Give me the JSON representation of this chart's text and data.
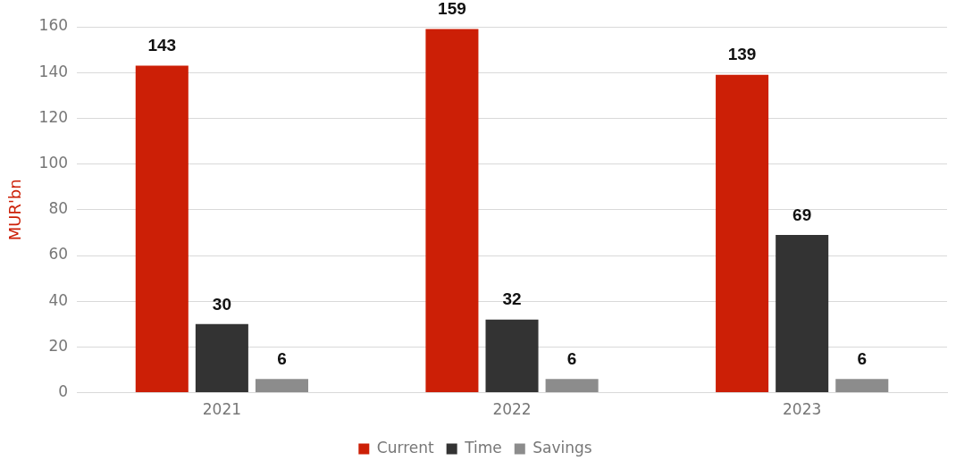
{
  "chart_data": {
    "type": "bar",
    "ylabel": "MUR'bn",
    "categories": [
      "2021",
      "2022",
      "2023"
    ],
    "series": [
      {
        "name": "Current",
        "color": "#cc1f06",
        "values": [
          143,
          159,
          139
        ]
      },
      {
        "name": "Time",
        "color": "#333333",
        "values": [
          30,
          32,
          69
        ]
      },
      {
        "name": "Savings",
        "color": "#8c8c8c",
        "values": [
          6,
          6,
          6
        ]
      }
    ],
    "ylim": [
      0,
      160
    ],
    "yticks": [
      0,
      20,
      40,
      60,
      80,
      100,
      120,
      140,
      160
    ],
    "grid": "y",
    "legend": "bottom",
    "data_labels": true
  }
}
